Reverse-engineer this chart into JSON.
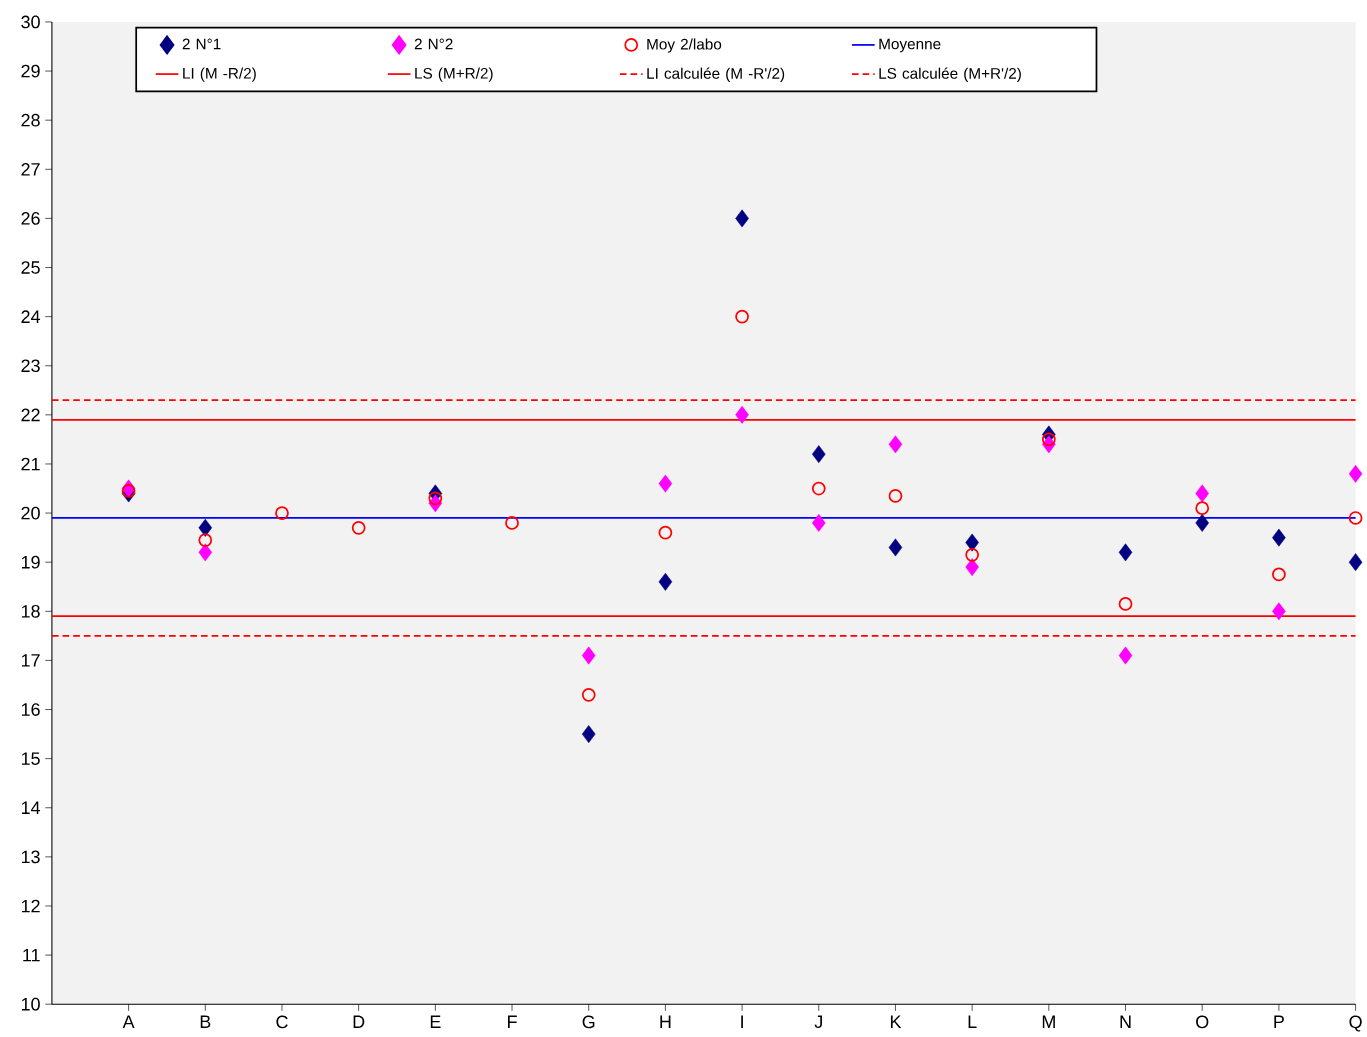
{
  "chart_data": {
    "type": "scatter",
    "categories": [
      "A",
      "B",
      "C",
      "D",
      "E",
      "F",
      "G",
      "H",
      "I",
      "J",
      "K",
      "L",
      "M",
      "N",
      "O",
      "P",
      "Q"
    ],
    "series": [
      {
        "name": "2  N°1",
        "color": "#000080",
        "marker": "diamond",
        "values": [
          20.4,
          19.7,
          null,
          null,
          20.4,
          null,
          15.5,
          18.6,
          26.0,
          21.2,
          19.3,
          19.4,
          21.6,
          19.2,
          19.8,
          19.5,
          19.0
        ]
      },
      {
        "name": "2  N°2",
        "color": "#ff00ff",
        "marker": "diamond",
        "values": [
          20.5,
          19.2,
          null,
          null,
          20.2,
          null,
          17.1,
          20.6,
          22.0,
          19.8,
          21.4,
          18.9,
          21.4,
          17.1,
          20.4,
          18.0,
          20.8
        ]
      },
      {
        "name": "Moy 2/labo",
        "color": "#ff0000",
        "marker": "circle",
        "values": [
          20.45,
          19.45,
          20.0,
          19.7,
          20.3,
          19.8,
          16.3,
          19.6,
          24.0,
          20.5,
          20.35,
          19.15,
          21.5,
          18.15,
          20.1,
          18.75,
          19.9
        ]
      }
    ],
    "ref_lines": [
      {
        "axis": "y",
        "value": 19.9,
        "label": "Moyenne",
        "color": "#0000ff",
        "line_style": "solid"
      },
      {
        "axis": "y",
        "value": 17.9,
        "label": "LI (M -R/2)",
        "color": "#ff0000",
        "line_style": "solid"
      },
      {
        "axis": "y",
        "value": 21.9,
        "label": "LS (M+R/2)",
        "color": "#ff0000",
        "line_style": "solid"
      },
      {
        "axis": "y",
        "value": 17.5,
        "label": "LI calculée (M -R'/2)",
        "color": "#ff0000",
        "line_style": "dashed"
      },
      {
        "axis": "y",
        "value": 22.3,
        "label": "LS calculée (M+R'/2)",
        "color": "#ff0000",
        "line_style": "dashed"
      }
    ],
    "ylim": [
      10,
      30
    ],
    "yticks": [
      10,
      11,
      12,
      13,
      14,
      15,
      16,
      17,
      18,
      19,
      20,
      21,
      22,
      23,
      24,
      25,
      26,
      27,
      28,
      29,
      30
    ],
    "legend": "top",
    "grid": false
  }
}
